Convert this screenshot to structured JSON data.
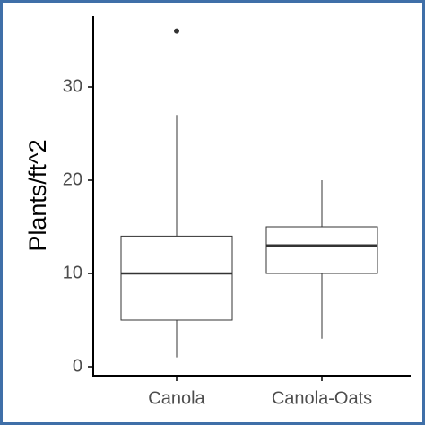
{
  "chart_data": {
    "type": "box",
    "ylabel": "Plants/ft^2",
    "categories": [
      "Canola",
      "Canola-Oats"
    ],
    "ylim": [
      0,
      36
    ],
    "yticks": [
      0,
      10,
      20,
      30
    ],
    "grid": false,
    "series": [
      {
        "category": "Canola",
        "min": 1,
        "q1": 5,
        "median": 10,
        "q3": 14,
        "max": 27,
        "outliers": [
          36
        ]
      },
      {
        "category": "Canola-Oats",
        "min": 3,
        "q1": 10,
        "median": 13,
        "q3": 15,
        "max": 20,
        "outliers": []
      }
    ],
    "colors": {
      "frame": "#3f6fa8",
      "axis": "#000000",
      "box_stroke": "#333333",
      "median": "#333333",
      "outlier": "#333333"
    }
  }
}
